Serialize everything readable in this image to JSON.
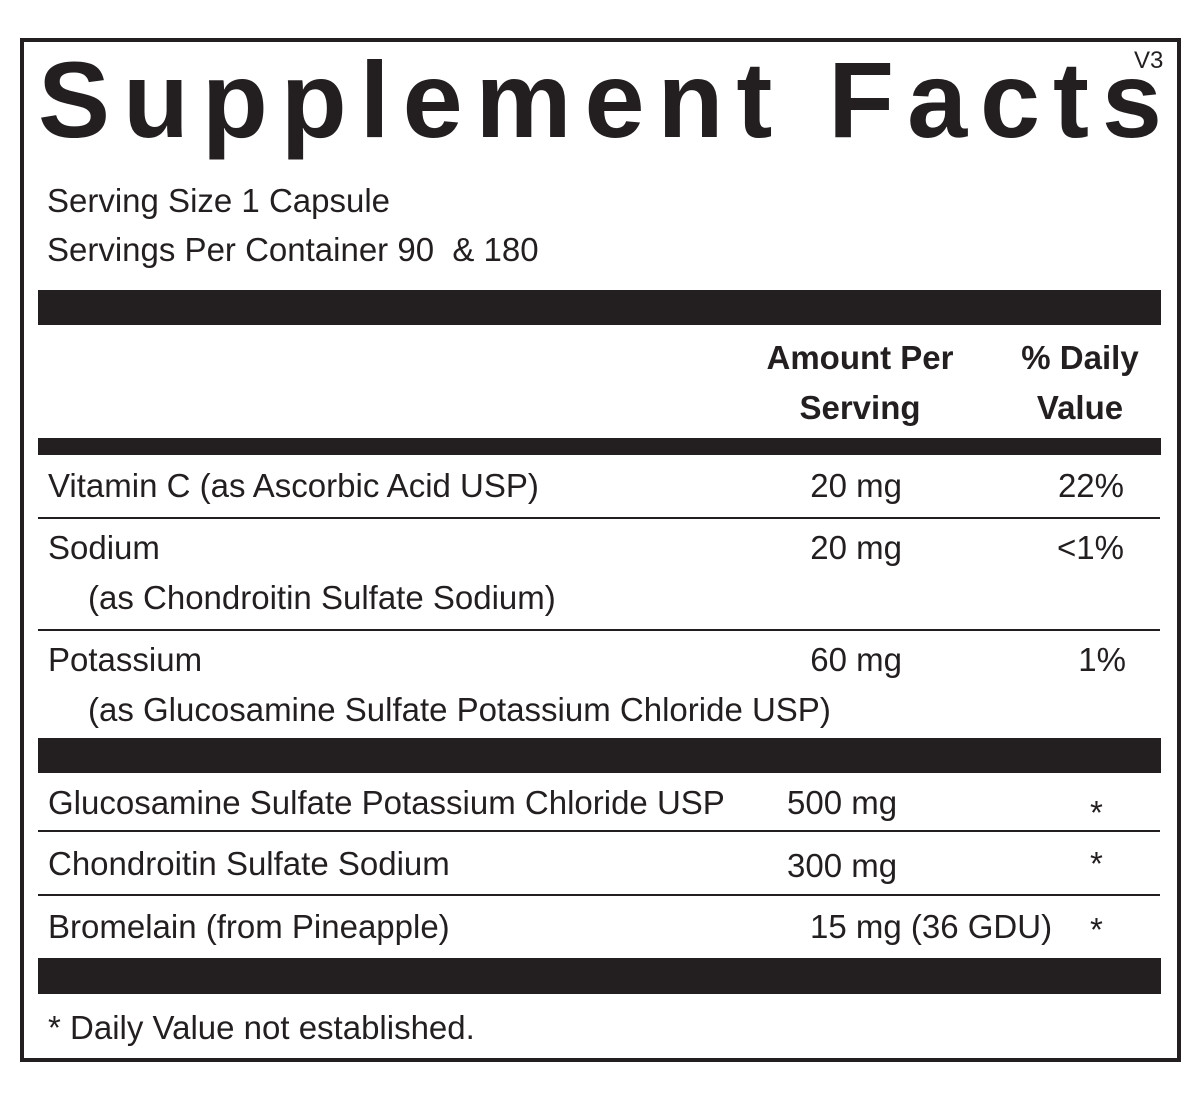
{
  "title": "Supplement Facts",
  "version": "V3",
  "serving_size": "Serving Size 1 Capsule",
  "servings_per_container": "Servings Per Container 90  & 180",
  "columns": {
    "amount": [
      "Amount Per",
      "Serving"
    ],
    "daily_value": [
      "% Daily",
      "Value"
    ]
  },
  "rows": [
    {
      "name": "Vitamin C (as Ascorbic Acid USP)",
      "amount": "20 mg",
      "daily_value": "22%"
    },
    {
      "name": "Sodium",
      "source": "(as Chondroitin Sulfate Sodium)",
      "amount": "20 mg",
      "daily_value": "<1%"
    },
    {
      "name": "Potassium",
      "source": "(as Glucosamine Sulfate Potassium Chloride USP)",
      "amount": "60 mg",
      "daily_value": "1%"
    }
  ],
  "other_rows": [
    {
      "name": "Glucosamine Sulfate Potassium Chloride USP",
      "amount": "500 mg",
      "daily_value": "*"
    },
    {
      "name": "Chondroitin Sulfate Sodium",
      "amount": "300 mg",
      "daily_value": "*"
    },
    {
      "name": "Bromelain (from Pineapple)",
      "amount": "15 mg (36 GDU)",
      "daily_value": "*"
    }
  ],
  "footnote": "* Daily Value not established."
}
